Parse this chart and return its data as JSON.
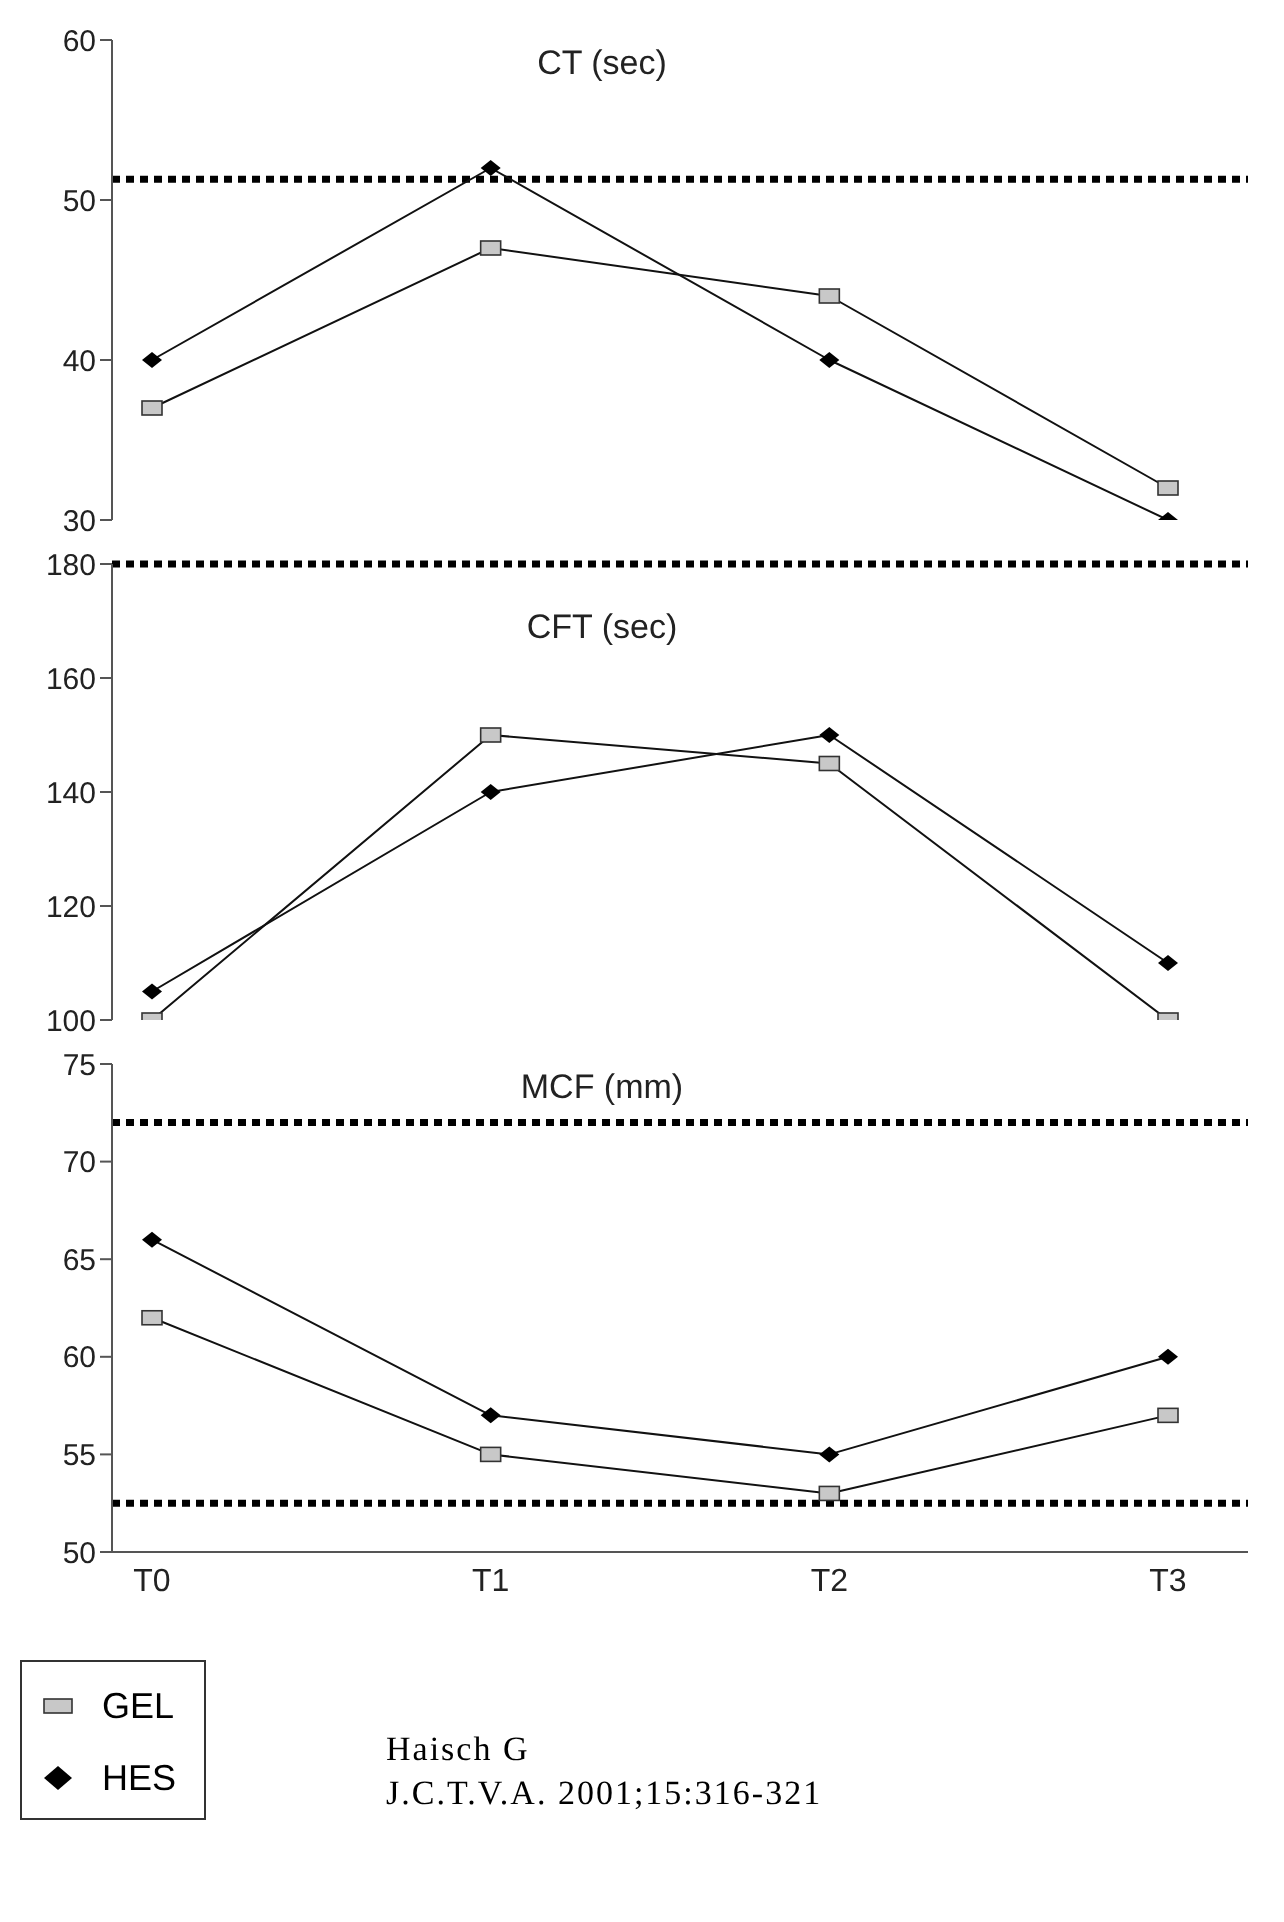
{
  "chart_data": [
    {
      "type": "line",
      "title": "CT (sec)",
      "categories": [
        null,
        null,
        null,
        null
      ],
      "ylim": [
        30,
        60
      ],
      "yticks": [
        30,
        40,
        50,
        60
      ],
      "tick_labels": "y",
      "line_style": "solid",
      "series": [
        {
          "color": "#c8c8c8",
          "marker": "square",
          "values": [
            37,
            47,
            44,
            32
          ]
        },
        {
          "color": "#000000",
          "marker": "diamond",
          "values": [
            40,
            52,
            40,
            30
          ]
        }
      ],
      "ref_lines": [
        {
          "axis": "y",
          "value": 51.3,
          "color": "#000000",
          "line_style": "dotted"
        }
      ]
    },
    {
      "type": "line",
      "title": "CFT (sec)",
      "categories": [
        null,
        null,
        null,
        null
      ],
      "ylim": [
        100,
        180
      ],
      "yticks": [
        100,
        120,
        140,
        160,
        180
      ],
      "tick_labels": "y",
      "line_style": "solid",
      "series": [
        {
          "color": "#c8c8c8",
          "marker": "square",
          "values": [
            100,
            150,
            145,
            100
          ]
        },
        {
          "color": "#000000",
          "marker": "diamond",
          "values": [
            105,
            140,
            150,
            110
          ]
        }
      ],
      "ref_lines": [
        {
          "axis": "y",
          "value": 180,
          "color": "#000000",
          "line_style": "dotted"
        }
      ]
    },
    {
      "type": "line",
      "title": "MCF (mm)",
      "categories": [
        "T0",
        "T1",
        "T2",
        "T3"
      ],
      "ylim": [
        50,
        75
      ],
      "yticks": [
        50,
        55,
        60,
        65,
        70,
        75
      ],
      "line_style": "solid",
      "legend": "bottom left",
      "series": [
        {
          "name": "GEL",
          "color": "#c8c8c8",
          "marker": "square",
          "values": [
            62,
            55,
            53,
            57
          ]
        },
        {
          "name": "HES",
          "color": "#000000",
          "marker": "diamond",
          "values": [
            66,
            57,
            55,
            60
          ]
        }
      ],
      "ref_lines": [
        {
          "axis": "y",
          "value": 72,
          "color": "#000000",
          "line_style": "dotted"
        },
        {
          "axis": "y",
          "value": 52.5,
          "color": "#000000",
          "line_style": "dotted"
        }
      ],
      "annotations": [
        "Haisch G",
        "J.C.T.V.A. 2001;15:316-321"
      ]
    }
  ]
}
